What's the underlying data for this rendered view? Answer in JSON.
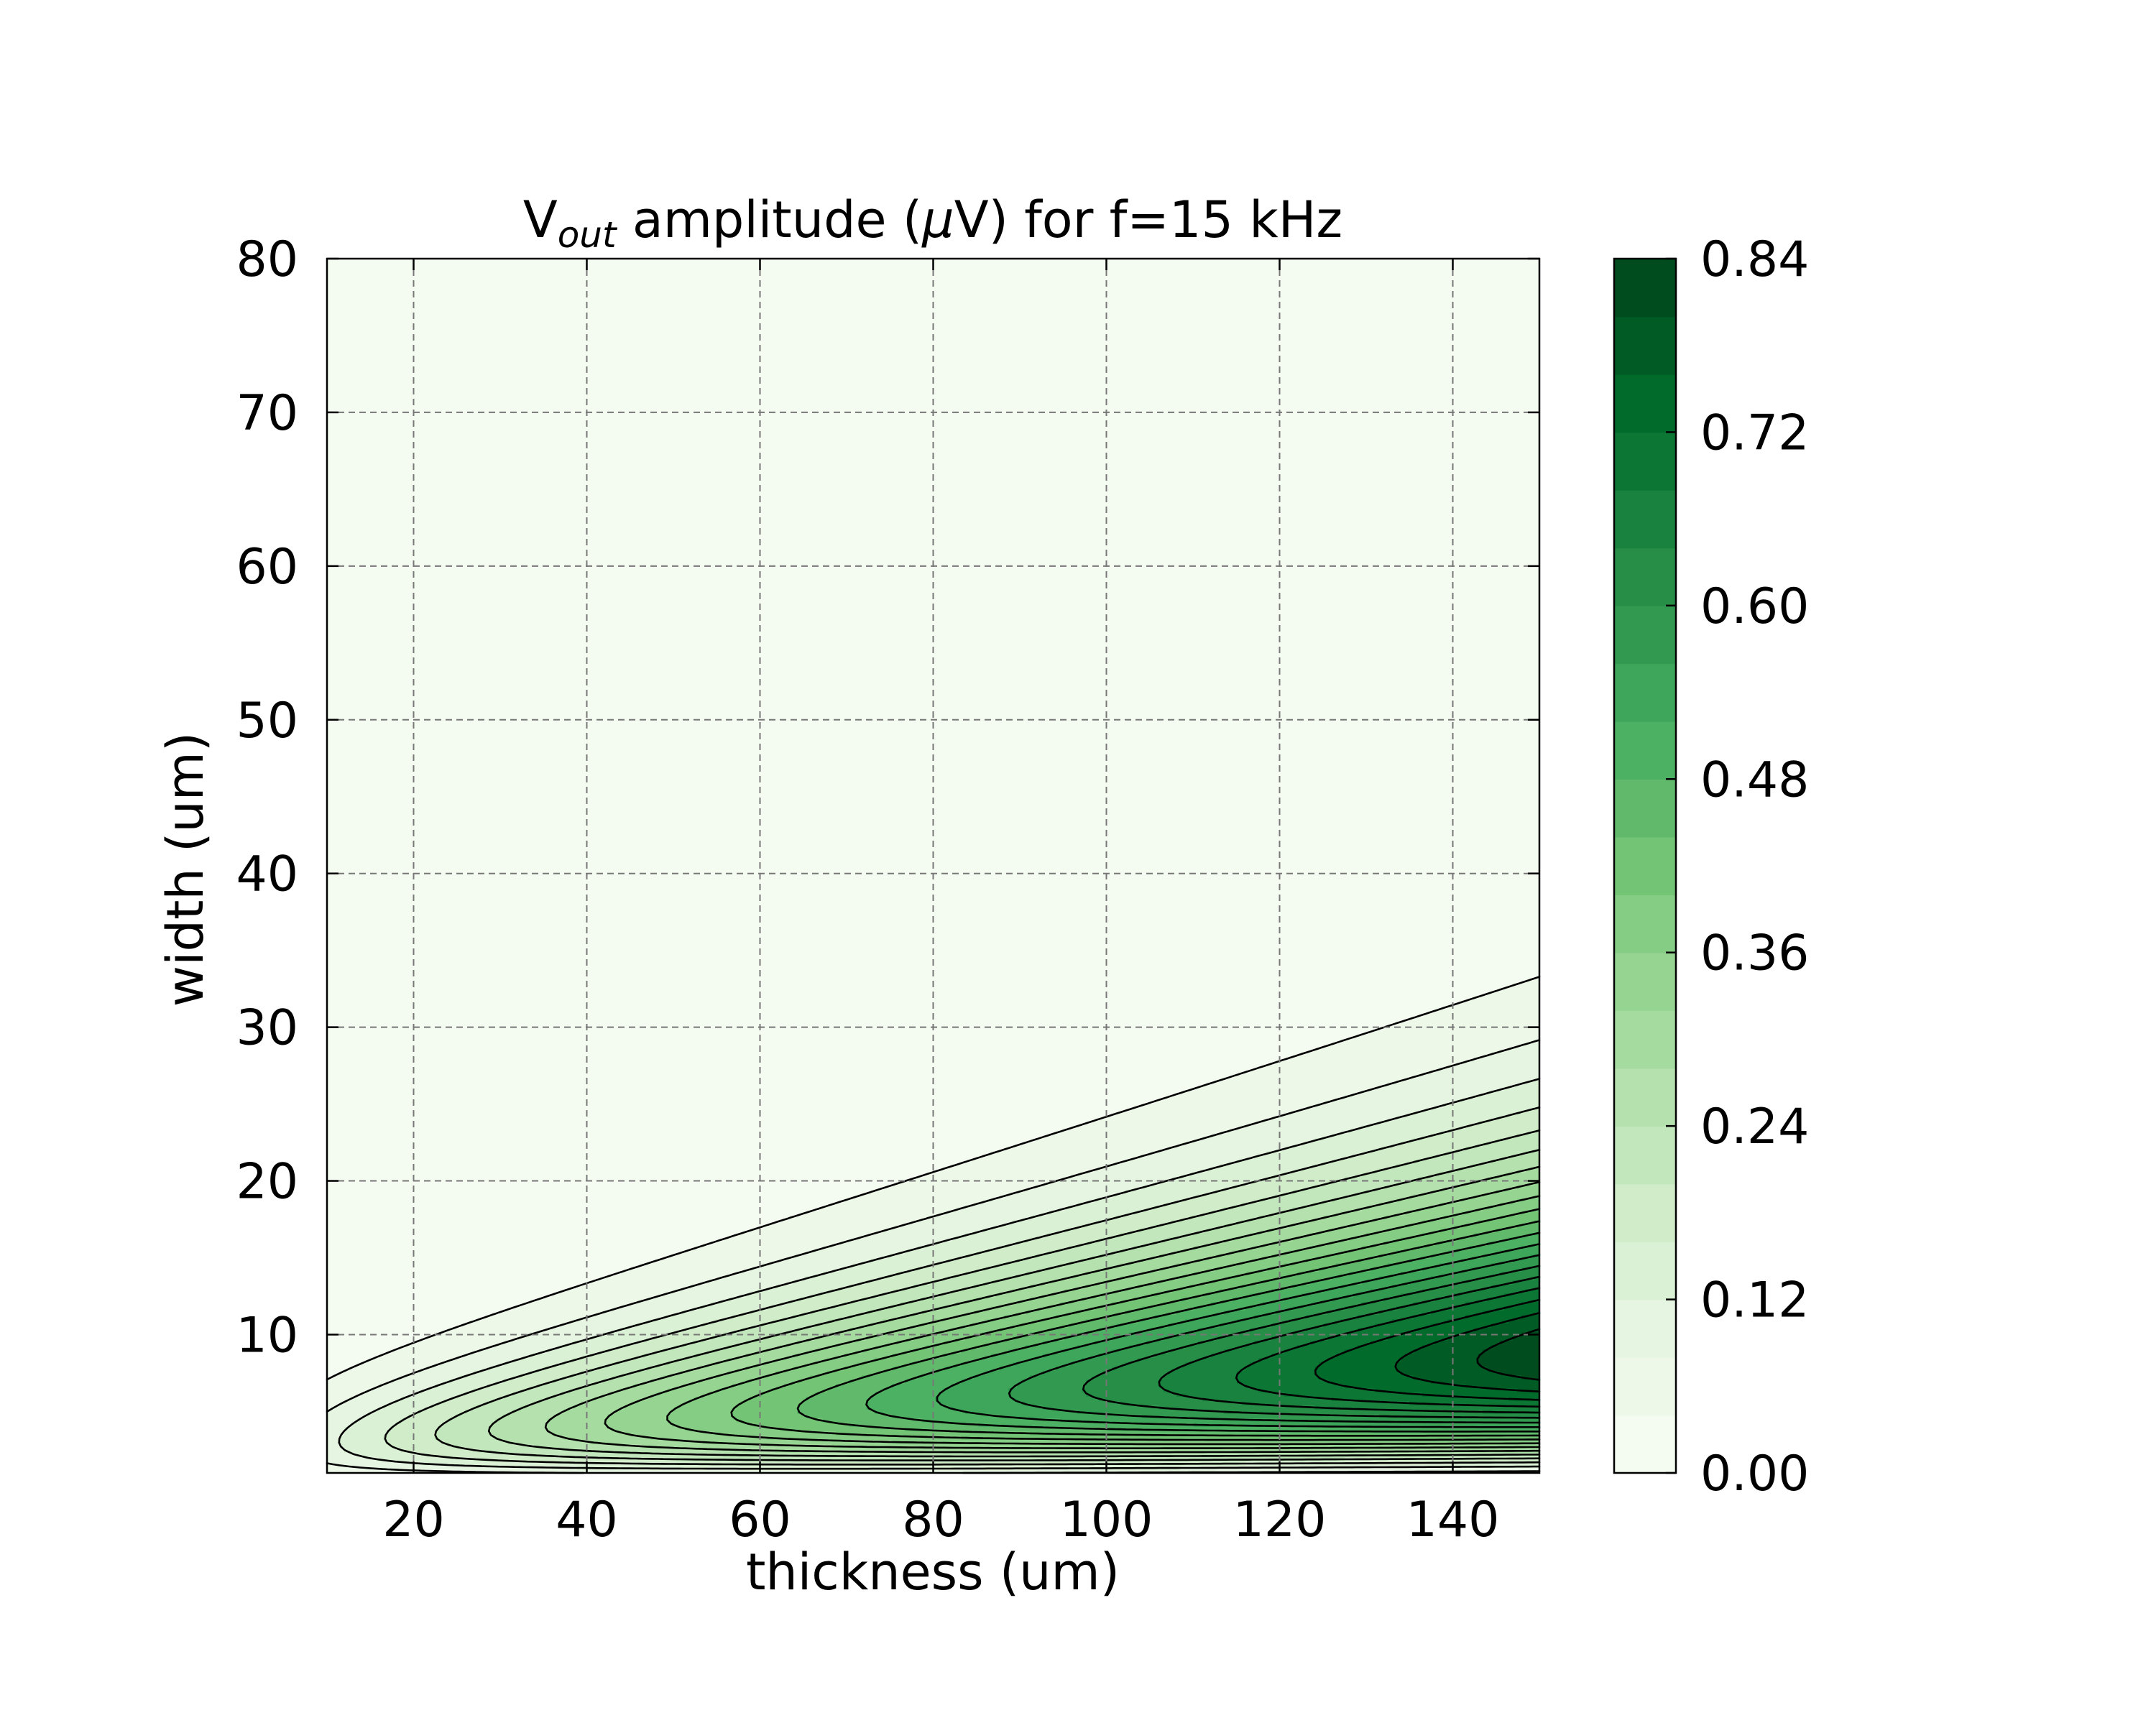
{
  "chart_data": {
    "type": "contour",
    "title": {
      "prefix": "V",
      "subscript": "out",
      "suffix_before_mu": " amplitude (",
      "mu": "μ",
      "suffix_after_mu": "V) for f=15 kHz"
    },
    "xlabel": "thickness (um)",
    "ylabel": "width (um)",
    "xlim": [
      10,
      150
    ],
    "ylim": [
      1,
      80
    ],
    "xticks": [
      "20",
      "40",
      "60",
      "80",
      "100",
      "120",
      "140"
    ],
    "xtick_values": [
      20,
      40,
      60,
      80,
      100,
      120,
      140
    ],
    "yticks": [
      "10",
      "20",
      "30",
      "40",
      "50",
      "60",
      "70",
      "80"
    ],
    "ytick_values": [
      10,
      20,
      30,
      40,
      50,
      60,
      70,
      80
    ],
    "grid": true,
    "colormap": "Greens",
    "colorbar": {
      "range": [
        0.0,
        0.84
      ],
      "levels": 21,
      "ticks": [
        "0.00",
        "0.12",
        "0.24",
        "0.36",
        "0.48",
        "0.60",
        "0.72",
        "0.84"
      ],
      "tick_values": [
        0.0,
        0.12,
        0.24,
        0.36,
        0.48,
        0.6,
        0.72,
        0.84
      ]
    },
    "contour_levels": [
      0.04,
      0.08,
      0.12,
      0.16,
      0.2,
      0.24,
      0.28,
      0.32,
      0.36,
      0.4,
      0.44,
      0.48,
      0.52,
      0.56,
      0.6,
      0.64,
      0.68,
      0.72,
      0.76,
      0.8
    ],
    "peak": {
      "thickness": 150,
      "width": 8.5,
      "value": 0.83
    },
    "colors": {
      "grid": "#777777",
      "contour_line": "#000000",
      "cmap_light": "#f7fcf5",
      "cmap_dark": "#00441b"
    }
  }
}
